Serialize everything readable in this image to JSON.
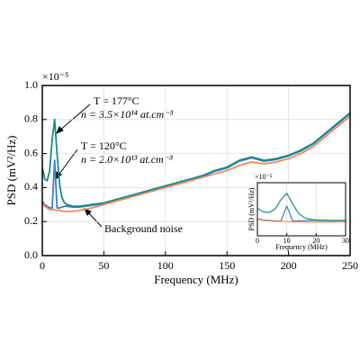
{
  "chart_data": [
    {
      "type": "line",
      "x_label": "Frequency (MHz)",
      "y_label": "PSD (mV²/Hz)",
      "y_multiplier": "×10⁻⁵",
      "xlim": [
        0,
        250
      ],
      "xticks": [
        0,
        50,
        100,
        150,
        200,
        250
      ],
      "ylim": [
        0,
        1
      ],
      "yticks": [
        {
          "value": 0,
          "label": "0.0"
        },
        0.2,
        0.4,
        0.6,
        0.8,
        {
          "value": 1,
          "label": "1.0"
        }
      ],
      "grid": true,
      "x": [
        0,
        2,
        4,
        6,
        8,
        10,
        12,
        14,
        16,
        18,
        20,
        25,
        30,
        40,
        50,
        60,
        70,
        80,
        90,
        100,
        110,
        120,
        130,
        140,
        150,
        160,
        170,
        180,
        190,
        200,
        210,
        220,
        230,
        240,
        250
      ],
      "series": [
        {
          "color": "#3f7fbf",
          "values": [
            0.32,
            0.3,
            0.29,
            0.28,
            0.28,
            0.56,
            0.28,
            0.28,
            0.285,
            0.29,
            0.29,
            0.285,
            0.285,
            0.295,
            0.305,
            0.325,
            0.345,
            0.365,
            0.385,
            0.405,
            0.425,
            0.445,
            0.465,
            0.495,
            0.515,
            0.555,
            0.575,
            0.555,
            0.565,
            0.585,
            0.615,
            0.655,
            0.715,
            0.775,
            0.835
          ]
        },
        {
          "color": "#1a8a82",
          "values": [
            0.52,
            0.45,
            0.44,
            0.5,
            0.68,
            0.8,
            0.6,
            0.42,
            0.34,
            0.31,
            0.3,
            0.29,
            0.29,
            0.3,
            0.31,
            0.33,
            0.35,
            0.37,
            0.39,
            0.41,
            0.43,
            0.45,
            0.47,
            0.5,
            0.52,
            0.56,
            0.58,
            0.56,
            0.57,
            0.59,
            0.62,
            0.66,
            0.72,
            0.78,
            0.84
          ]
        },
        {
          "color": "#f08a5d",
          "values": [
            0.31,
            0.29,
            0.28,
            0.27,
            0.27,
            0.27,
            0.265,
            0.265,
            0.262,
            0.26,
            0.26,
            0.26,
            0.265,
            0.28,
            0.3,
            0.32,
            0.34,
            0.36,
            0.38,
            0.4,
            0.42,
            0.44,
            0.46,
            0.48,
            0.5,
            0.53,
            0.55,
            0.54,
            0.55,
            0.57,
            0.6,
            0.64,
            0.7,
            0.76,
            0.82
          ]
        }
      ],
      "annotations": [
        "T = 177°C",
        "n = 3.5×10¹⁴ at.cm⁻³",
        "T = 120°C",
        "n = 2.0×10¹³ at.cm⁻³",
        "Background noise"
      ]
    },
    {
      "type": "line",
      "x_label": "Frequency (MHz)",
      "y_label": "PSD (mV²/Hz)",
      "y_multiplier": "×10⁻⁵",
      "xlim": [
        0,
        30
      ],
      "xticks": [
        0,
        10,
        20,
        30
      ],
      "ylim": [
        0,
        1
      ],
      "grid": true,
      "x": [
        0,
        2,
        4,
        6,
        8,
        10,
        12,
        14,
        16,
        18,
        20,
        25,
        30
      ],
      "series": [
        {
          "color": "#3f7fbf",
          "values": [
            0.32,
            0.3,
            0.29,
            0.28,
            0.28,
            0.56,
            0.28,
            0.28,
            0.285,
            0.29,
            0.29,
            0.285,
            0.285
          ]
        },
        {
          "color": "#1a8a82",
          "values": [
            0.52,
            0.45,
            0.44,
            0.5,
            0.68,
            0.8,
            0.6,
            0.42,
            0.34,
            0.31,
            0.3,
            0.29,
            0.29
          ]
        },
        {
          "color": "#f08a5d",
          "values": [
            0.31,
            0.29,
            0.28,
            0.27,
            0.27,
            0.27,
            0.265,
            0.265,
            0.262,
            0.26,
            0.26,
            0.26,
            0.265
          ]
        }
      ]
    }
  ]
}
